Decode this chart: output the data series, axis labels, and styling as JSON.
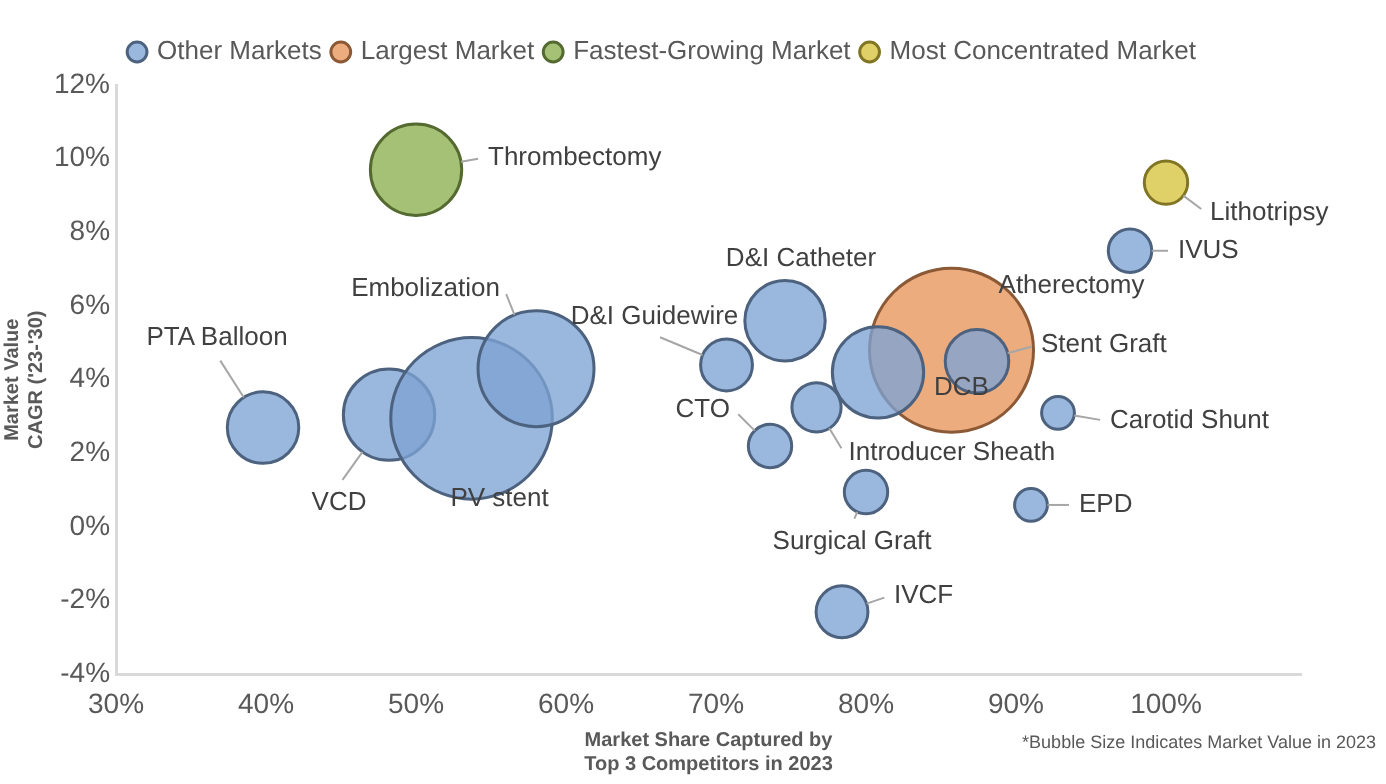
{
  "chart_data": {
    "type": "bubble",
    "xlabel": "Market Share Captured by\nTop 3 Competitors in 2023",
    "ylabel": "Market Value\nCAGR ('23-'30)",
    "xlim": [
      30,
      109
    ],
    "ylim": [
      -4,
      12
    ],
    "xticks": [
      {
        "value": 30,
        "label": "30%"
      },
      {
        "value": 40,
        "label": "40%"
      },
      {
        "value": 50,
        "label": "50%"
      },
      {
        "value": 60,
        "label": "60%"
      },
      {
        "value": 70,
        "label": "70%"
      },
      {
        "value": 80,
        "label": "80%"
      },
      {
        "value": 90,
        "label": "90%"
      },
      {
        "value": 100,
        "label": "100%"
      }
    ],
    "yticks": [
      {
        "value": -4,
        "label": "-4%"
      },
      {
        "value": -2,
        "label": "-2%"
      },
      {
        "value": 0,
        "label": "0%"
      },
      {
        "value": 2,
        "label": "2%"
      },
      {
        "value": 4,
        "label": "4%"
      },
      {
        "value": 6,
        "label": "6%"
      },
      {
        "value": 8,
        "label": "8%"
      },
      {
        "value": 10,
        "label": "10%"
      },
      {
        "value": 12,
        "label": "12%"
      }
    ],
    "grid": false,
    "legend": "top",
    "series": [
      {
        "name": "Other Markets",
        "color": "#7ea3d3",
        "x": [
          97.6,
          74.6,
          70.7,
          87.4,
          80.8,
          92.8,
          91.0,
          78.4,
          80.0,
          76.7,
          73.6,
          39.8,
          48.2,
          53.7,
          58.0
        ],
        "values": [
          7.5,
          5.6,
          4.4,
          4.5,
          4.2,
          3.1,
          0.6,
          -2.3,
          0.95,
          3.25,
          2.2,
          2.7,
          3.05,
          2.95,
          4.3
        ],
        "sizes": [
          0.07,
          0.24,
          0.1,
          0.15,
          0.31,
          0.04,
          0.04,
          0.1,
          0.07,
          0.09,
          0.07,
          0.19,
          0.31,
          0.97,
          0.5
        ]
      },
      {
        "name": "Largest Market",
        "color": "#e8955a",
        "x": [
          85.7
        ],
        "values": [
          4.8
        ],
        "sizes": [
          1
        ]
      },
      {
        "name": "Fastest-Growing Market",
        "color": "#8cb050",
        "x": [
          50.0
        ],
        "values": [
          9.7
        ],
        "sizes": [
          0.31
        ]
      },
      {
        "name": "Most Concentrated Market",
        "color": "#d6c33c",
        "x": [
          100.0
        ],
        "values": [
          9.35
        ],
        "sizes": [
          0.07
        ]
      }
    ],
    "annotations": [
      {
        "text": "Thrombectomy",
        "x": 50.0,
        "y": 9.7
      },
      {
        "text": "Lithotripsy",
        "x": 100.0,
        "y": 9.35
      },
      {
        "text": "IVUS",
        "x": 97.6,
        "y": 7.5
      },
      {
        "text": "D&I Catheter",
        "x": 74.6,
        "y": 5.6
      },
      {
        "text": "D&I Guidewire",
        "x": 70.7,
        "y": 4.4
      },
      {
        "text": "Atherectomy",
        "x": 85.7,
        "y": 4.8
      },
      {
        "text": "Stent Graft",
        "x": 87.4,
        "y": 4.5
      },
      {
        "text": "DCB",
        "x": 80.8,
        "y": 4.2
      },
      {
        "text": "Carotid Shunt",
        "x": 92.8,
        "y": 3.1
      },
      {
        "text": "EPD",
        "x": 91.0,
        "y": 0.6
      },
      {
        "text": "IVCF",
        "x": 78.4,
        "y": -2.3
      },
      {
        "text": "Surgical Graft",
        "x": 80.0,
        "y": 0.95
      },
      {
        "text": "Introducer Sheath",
        "x": 76.7,
        "y": 3.25
      },
      {
        "text": "CTO",
        "x": 73.6,
        "y": 2.2
      },
      {
        "text": "PTA Balloon",
        "x": 39.8,
        "y": 2.7
      },
      {
        "text": "VCD",
        "x": 48.2,
        "y": 3.05
      },
      {
        "text": "PV stent",
        "x": 53.7,
        "y": 2.95
      },
      {
        "text": "Embolization",
        "x": 58.0,
        "y": 4.3
      },
      "*Bubble Size Indicates Market Value in 2023"
    ]
  }
}
